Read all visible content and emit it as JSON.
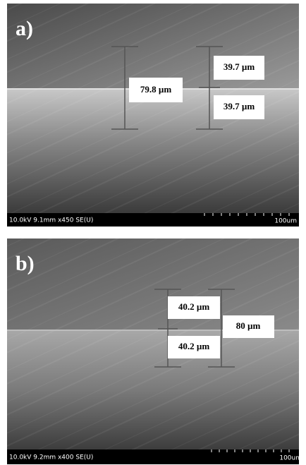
{
  "panels": [
    {
      "label": "a)",
      "footer": "10.0kV 9.1mm x450 SE(U)",
      "scale_bar": "100um",
      "measurements": [
        "79.8 µm",
        "39.7 µm",
        "39.7 µm"
      ]
    },
    {
      "label": "b)",
      "footer": "10.0kV 9.2mm x400 SE(U)",
      "scale_bar": "100um",
      "measurements": [
        "40.2 µm",
        "40.2 µm",
        "80 µm"
      ]
    }
  ]
}
